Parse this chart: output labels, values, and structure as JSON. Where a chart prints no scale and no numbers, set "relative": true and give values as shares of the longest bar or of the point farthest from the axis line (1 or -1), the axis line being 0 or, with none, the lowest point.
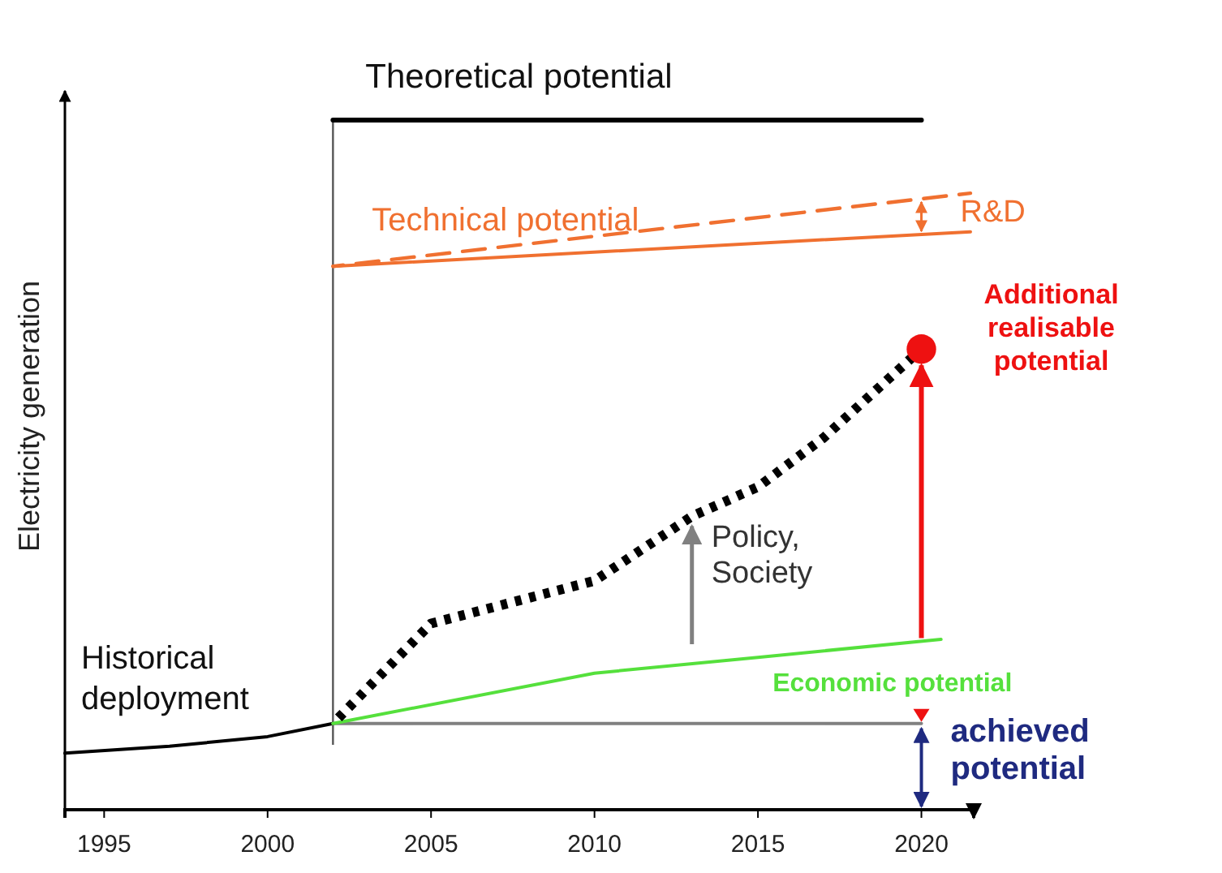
{
  "chart_data": {
    "type": "line",
    "relative": true,
    "ylabel": "Electricity generation",
    "xlim": [
      1993.8,
      2021.6
    ],
    "xticks": [
      1995,
      2000,
      2005,
      2010,
      2015,
      2020
    ],
    "grid": false,
    "series": [
      {
        "name": "Theoretical potential",
        "color": "#000000",
        "x": [
          2002,
          2020
        ],
        "values": [
          1,
          1
        ],
        "line_style": "solid"
      },
      {
        "name": "Technical potential",
        "color": "#f07030",
        "x": [
          2002,
          2021.5
        ],
        "values": [
          0.788,
          0.838
        ],
        "line_style": "solid"
      },
      {
        "color": "#f07030",
        "x": [
          2002,
          2021.5
        ],
        "values": [
          0.788,
          0.894
        ],
        "line_style": "dashed"
      },
      {
        "name": "Historical deployment",
        "color": "#000000",
        "x": [
          1993.8,
          1997,
          2000,
          2002
        ],
        "values": [
          0.082,
          0.092,
          0.106,
          0.125
        ],
        "line_style": "solid"
      },
      {
        "color": "#808080",
        "x": [
          2002,
          2020
        ],
        "values": [
          0.125,
          0.125
        ],
        "line_style": "solid"
      },
      {
        "name": "Economic potential",
        "color": "#55e03c",
        "x": [
          2002,
          2010,
          2015,
          2020.6
        ],
        "values": [
          0.125,
          0.198,
          0.221,
          0.247
        ],
        "line_style": "solid"
      },
      {
        "color": "#000000",
        "x": [
          2002,
          2005,
          2010,
          2013,
          2015,
          2017,
          2020
        ],
        "values": [
          0.125,
          0.27,
          0.332,
          0.426,
          0.468,
          0.539,
          0.668
        ],
        "line_style": "dotted"
      },
      {
        "type": "scatter",
        "color": "#ee1111",
        "x": [
          2020
        ],
        "values": [
          0.668
        ],
        "marker": "circle"
      }
    ],
    "ref_lines": [
      {
        "axis": "x",
        "value": 2002,
        "color": "#555555"
      }
    ],
    "annotations": [
      "Additional realisable potential",
      "Policy, Society",
      "achieved potential",
      "R&D"
    ]
  }
}
